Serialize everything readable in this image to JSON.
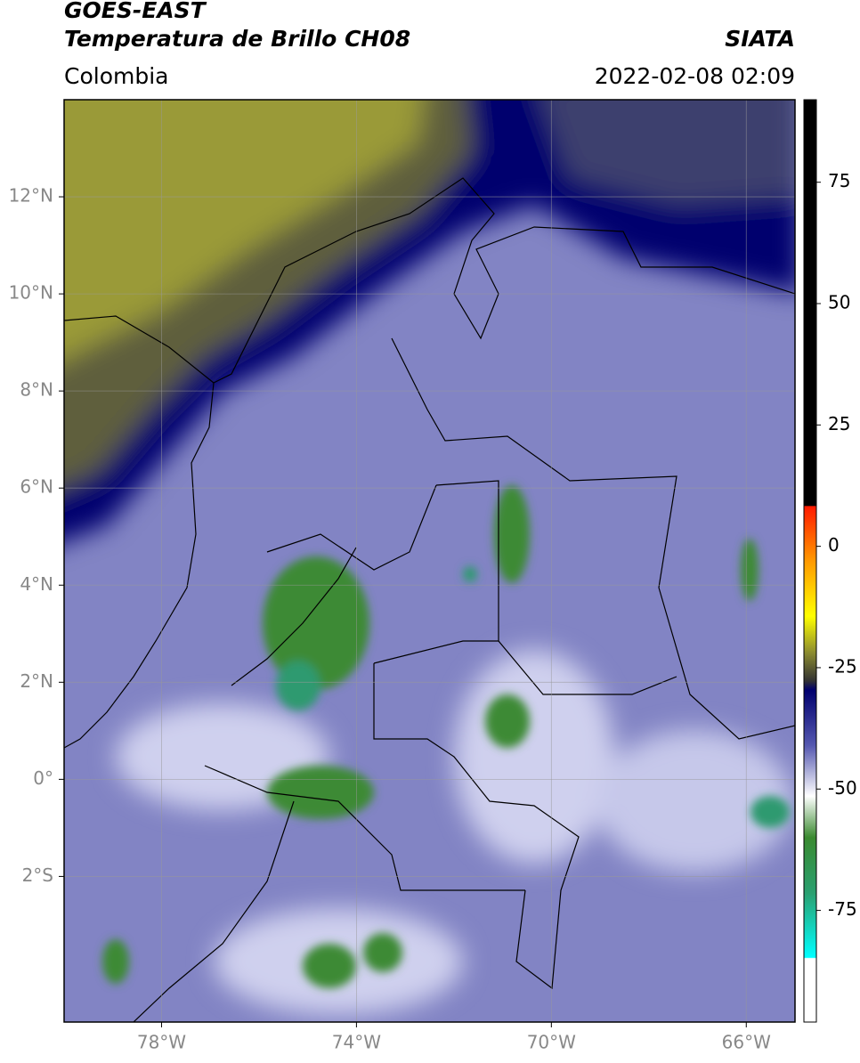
{
  "header": {
    "title_line1": "GOES-EAST",
    "title_line2": "Temperatura de Brillo CH08",
    "source": "SIATA",
    "region": "Colombia",
    "datetime": "2022-02-08 02:09"
  },
  "map": {
    "lonlim": [
      -80,
      -65
    ],
    "latlim": [
      -5,
      14
    ],
    "grid": true,
    "xticks": [
      {
        "value": -78,
        "label": "78°W"
      },
      {
        "value": -74,
        "label": "74°W"
      },
      {
        "value": -70,
        "label": "70°W"
      },
      {
        "value": -66,
        "label": "66°W"
      }
    ],
    "yticks": [
      {
        "value": 12,
        "label": "12°N"
      },
      {
        "value": 10,
        "label": "10°N"
      },
      {
        "value": 8,
        "label": "8°N"
      },
      {
        "value": 6,
        "label": "6°N"
      },
      {
        "value": 4,
        "label": "4°N"
      },
      {
        "value": 2,
        "label": "2°N"
      },
      {
        "value": 0,
        "label": "0°"
      },
      {
        "value": -2,
        "label": "2°S"
      }
    ]
  },
  "colorbar": {
    "lim": [
      -98,
      92
    ],
    "ticks": [
      75,
      50,
      25,
      0,
      -25,
      -50,
      -75
    ]
  }
}
